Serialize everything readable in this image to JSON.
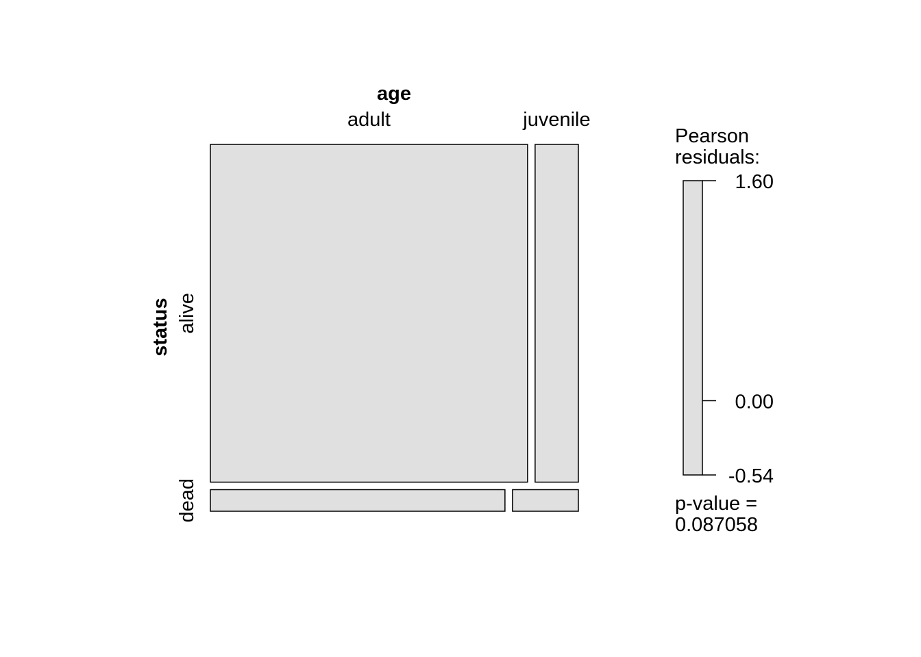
{
  "chart_data": {
    "type": "mosaic",
    "title": "",
    "x_variable": "age",
    "y_variable": "status",
    "x_levels": [
      "adult",
      "juvenile"
    ],
    "y_levels": [
      "alive",
      "dead"
    ],
    "column_proportions": {
      "adult": 0.88,
      "juvenile": 0.12
    },
    "cells": [
      {
        "age": "adult",
        "status": "alive",
        "proportion_within_age": 0.94
      },
      {
        "age": "adult",
        "status": "dead",
        "proportion_within_age": 0.06
      },
      {
        "age": "juvenile",
        "status": "alive",
        "proportion_within_age": 0.94
      },
      {
        "age": "juvenile",
        "status": "dead",
        "proportion_within_age": 0.06
      }
    ],
    "cell_fill": "#e0e0e0",
    "legend": {
      "title_line1": "Pearson",
      "title_line2": "residuals:",
      "ticks": [
        {
          "value": 1.6,
          "label": "1.60"
        },
        {
          "value": 0.0,
          "label": "0.00"
        },
        {
          "value": -0.54,
          "label": "-0.54"
        }
      ],
      "range": [
        -0.54,
        1.6
      ],
      "placement": "right"
    },
    "p_value_line1": "p-value =",
    "p_value_line2": "0.087058"
  }
}
